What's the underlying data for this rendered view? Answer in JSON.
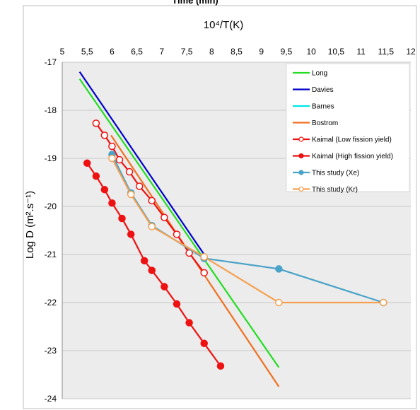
{
  "page_title_cut": "Time (min)",
  "chart_data": {
    "type": "scatter",
    "title": "",
    "xlabel": "10⁴/T(K)",
    "ylabel": "Log D (m².s⁻¹)",
    "xlim": [
      5,
      12
    ],
    "ylim": [
      -24,
      -17
    ],
    "x_tick_labels": [
      "5",
      "5,5",
      "6",
      "6,5",
      "7",
      "7,5",
      "8",
      "8,5",
      "9",
      "9,5",
      "10",
      "10,5",
      "11",
      "11,5",
      "12"
    ],
    "y_tick_labels": [
      "-17",
      "-18",
      "-19",
      "-20",
      "-21",
      "-22",
      "-23",
      "-24"
    ],
    "x_axis_position": "top",
    "grid": "horizontal",
    "plot_background": "#ececec",
    "legend_position": "top-right",
    "series": [
      {
        "name": "Long",
        "color": "#22dd22",
        "marker": "none",
        "x": [
          5.35,
          9.35
        ],
        "y": [
          -17.35,
          -23.35
        ]
      },
      {
        "name": "Davies",
        "color": "#0000cc",
        "marker": "none",
        "x": [
          5.35,
          7.85
        ],
        "y": [
          -17.2,
          -21.0
        ]
      },
      {
        "name": "Barnes",
        "color": "#00e6e6",
        "marker": "none",
        "x": [],
        "y": []
      },
      {
        "name": "Bostrom",
        "color": "#f07020",
        "marker": "none",
        "x": [
          5.98,
          9.35
        ],
        "y": [
          -18.52,
          -23.75
        ]
      },
      {
        "name": "Kaimal (Low fission yield)",
        "color": "#ee1111",
        "marker": "open",
        "x": [
          5.68,
          5.85,
          6.0,
          6.15,
          6.35,
          6.55,
          6.8,
          7.05,
          7.3,
          7.55,
          7.85
        ],
        "y": [
          -18.27,
          -18.52,
          -18.75,
          -19.03,
          -19.28,
          -19.58,
          -19.88,
          -20.23,
          -20.58,
          -20.97,
          -21.38
        ]
      },
      {
        "name": "Kaimal (High fission yield)",
        "color": "#ee1111",
        "marker": "filled",
        "x": [
          5.5,
          5.68,
          5.85,
          6.0,
          6.2,
          6.38,
          6.65,
          6.8,
          7.05,
          7.3,
          7.55,
          7.85,
          8.18
        ],
        "y": [
          -19.1,
          -19.37,
          -19.65,
          -19.93,
          -20.25,
          -20.58,
          -21.13,
          -21.33,
          -21.67,
          -22.03,
          -22.42,
          -22.85,
          -23.32
        ]
      },
      {
        "name": "This study (Xe)",
        "color": "#4aa3c8",
        "marker": "filled",
        "x": [
          6.0,
          6.38,
          6.8,
          7.85,
          9.35,
          11.45
        ],
        "y": [
          -18.92,
          -19.72,
          -20.4,
          -21.08,
          -21.3,
          -22.0
        ]
      },
      {
        "name": "This study (Kr)",
        "color": "#f5a050",
        "marker": "open",
        "x": [
          6.0,
          6.38,
          6.8,
          7.85,
          9.35,
          11.45
        ],
        "y": [
          -19.0,
          -19.75,
          -20.42,
          -21.05,
          -22.0,
          -22.0
        ]
      }
    ]
  }
}
